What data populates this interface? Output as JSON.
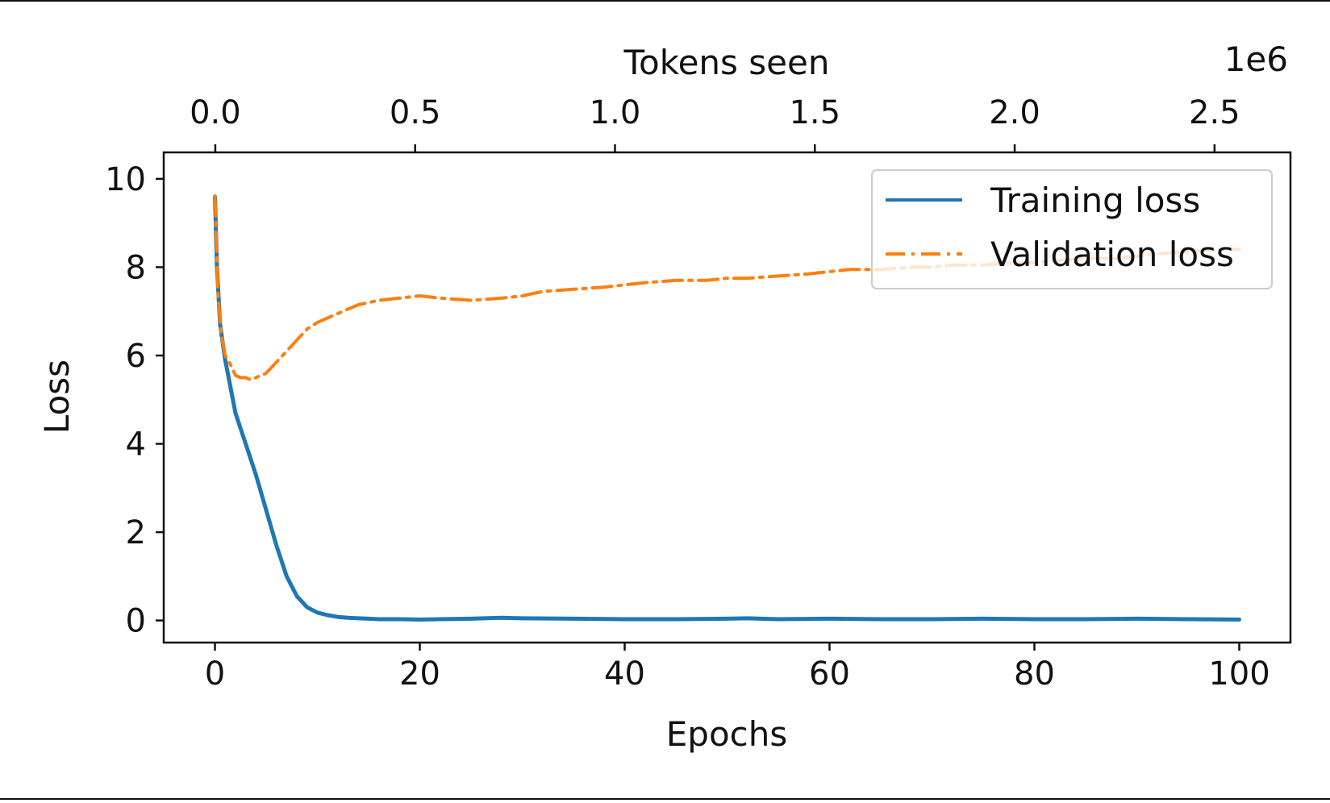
{
  "chart_data": {
    "type": "line",
    "title": "",
    "xlabel": "Epochs",
    "ylabel": "Loss",
    "top_xlabel": "Tokens seen",
    "top_axis_multiplier": "1e6",
    "xlim": [
      -5,
      105
    ],
    "ylim": [
      -0.5,
      10.6
    ],
    "top_xlim": [
      -0.129,
      2.69
    ],
    "x_ticks": [
      0,
      20,
      40,
      60,
      80,
      100
    ],
    "x_tick_labels": [
      "0",
      "20",
      "40",
      "60",
      "80",
      "100"
    ],
    "y_ticks": [
      0,
      2,
      4,
      6,
      8,
      10
    ],
    "y_tick_labels": [
      "0",
      "2",
      "4",
      "6",
      "8",
      "10"
    ],
    "top_x_ticks": [
      0.0,
      0.5,
      1.0,
      1.5,
      2.0,
      2.5
    ],
    "top_x_tick_labels": [
      "0.0",
      "0.5",
      "1.0",
      "1.5",
      "2.0",
      "2.5"
    ],
    "grid": false,
    "legend_position": "top-right",
    "series": [
      {
        "name": "Training loss",
        "color": "#1f77b4",
        "style": "solid",
        "x": [
          0,
          0.2,
          0.5,
          1,
          1.5,
          2,
          3,
          4,
          5,
          6,
          7,
          8,
          9,
          10,
          11,
          12,
          13,
          14,
          15,
          16,
          18,
          20,
          22,
          25,
          28,
          30,
          35,
          40,
          45,
          50,
          52,
          55,
          60,
          65,
          70,
          75,
          80,
          85,
          90,
          95,
          100
        ],
        "y": [
          9.6,
          8.0,
          6.7,
          5.9,
          5.3,
          4.7,
          4.0,
          3.3,
          2.5,
          1.7,
          1.0,
          0.55,
          0.3,
          0.18,
          0.12,
          0.08,
          0.06,
          0.05,
          0.04,
          0.03,
          0.03,
          0.02,
          0.03,
          0.04,
          0.06,
          0.05,
          0.04,
          0.03,
          0.03,
          0.04,
          0.05,
          0.03,
          0.04,
          0.03,
          0.03,
          0.04,
          0.03,
          0.03,
          0.04,
          0.03,
          0.02
        ]
      },
      {
        "name": "Validation loss",
        "color": "#ff7f0e",
        "style": "dashdot",
        "x": [
          0,
          0.3,
          0.6,
          1,
          1.5,
          2,
          2.5,
          3,
          3.5,
          4,
          5,
          6,
          7,
          8,
          9,
          10,
          12,
          14,
          16,
          18,
          20,
          22,
          25,
          28,
          30,
          32,
          35,
          38,
          40,
          42,
          45,
          48,
          50,
          52,
          55,
          58,
          60,
          62,
          65,
          68,
          70,
          72,
          75,
          78,
          80,
          82,
          85,
          88,
          90,
          92,
          95,
          98,
          100
        ],
        "y": [
          9.6,
          7.4,
          6.5,
          6.0,
          5.8,
          5.55,
          5.5,
          5.5,
          5.45,
          5.5,
          5.6,
          5.85,
          6.1,
          6.35,
          6.6,
          6.75,
          6.95,
          7.15,
          7.25,
          7.3,
          7.35,
          7.3,
          7.25,
          7.3,
          7.35,
          7.45,
          7.5,
          7.55,
          7.6,
          7.65,
          7.7,
          7.7,
          7.75,
          7.75,
          7.8,
          7.85,
          7.9,
          7.95,
          7.95,
          8.0,
          8.0,
          8.05,
          8.05,
          8.1,
          8.1,
          8.15,
          8.2,
          8.2,
          8.25,
          8.3,
          8.35,
          8.4,
          8.4
        ]
      }
    ]
  }
}
